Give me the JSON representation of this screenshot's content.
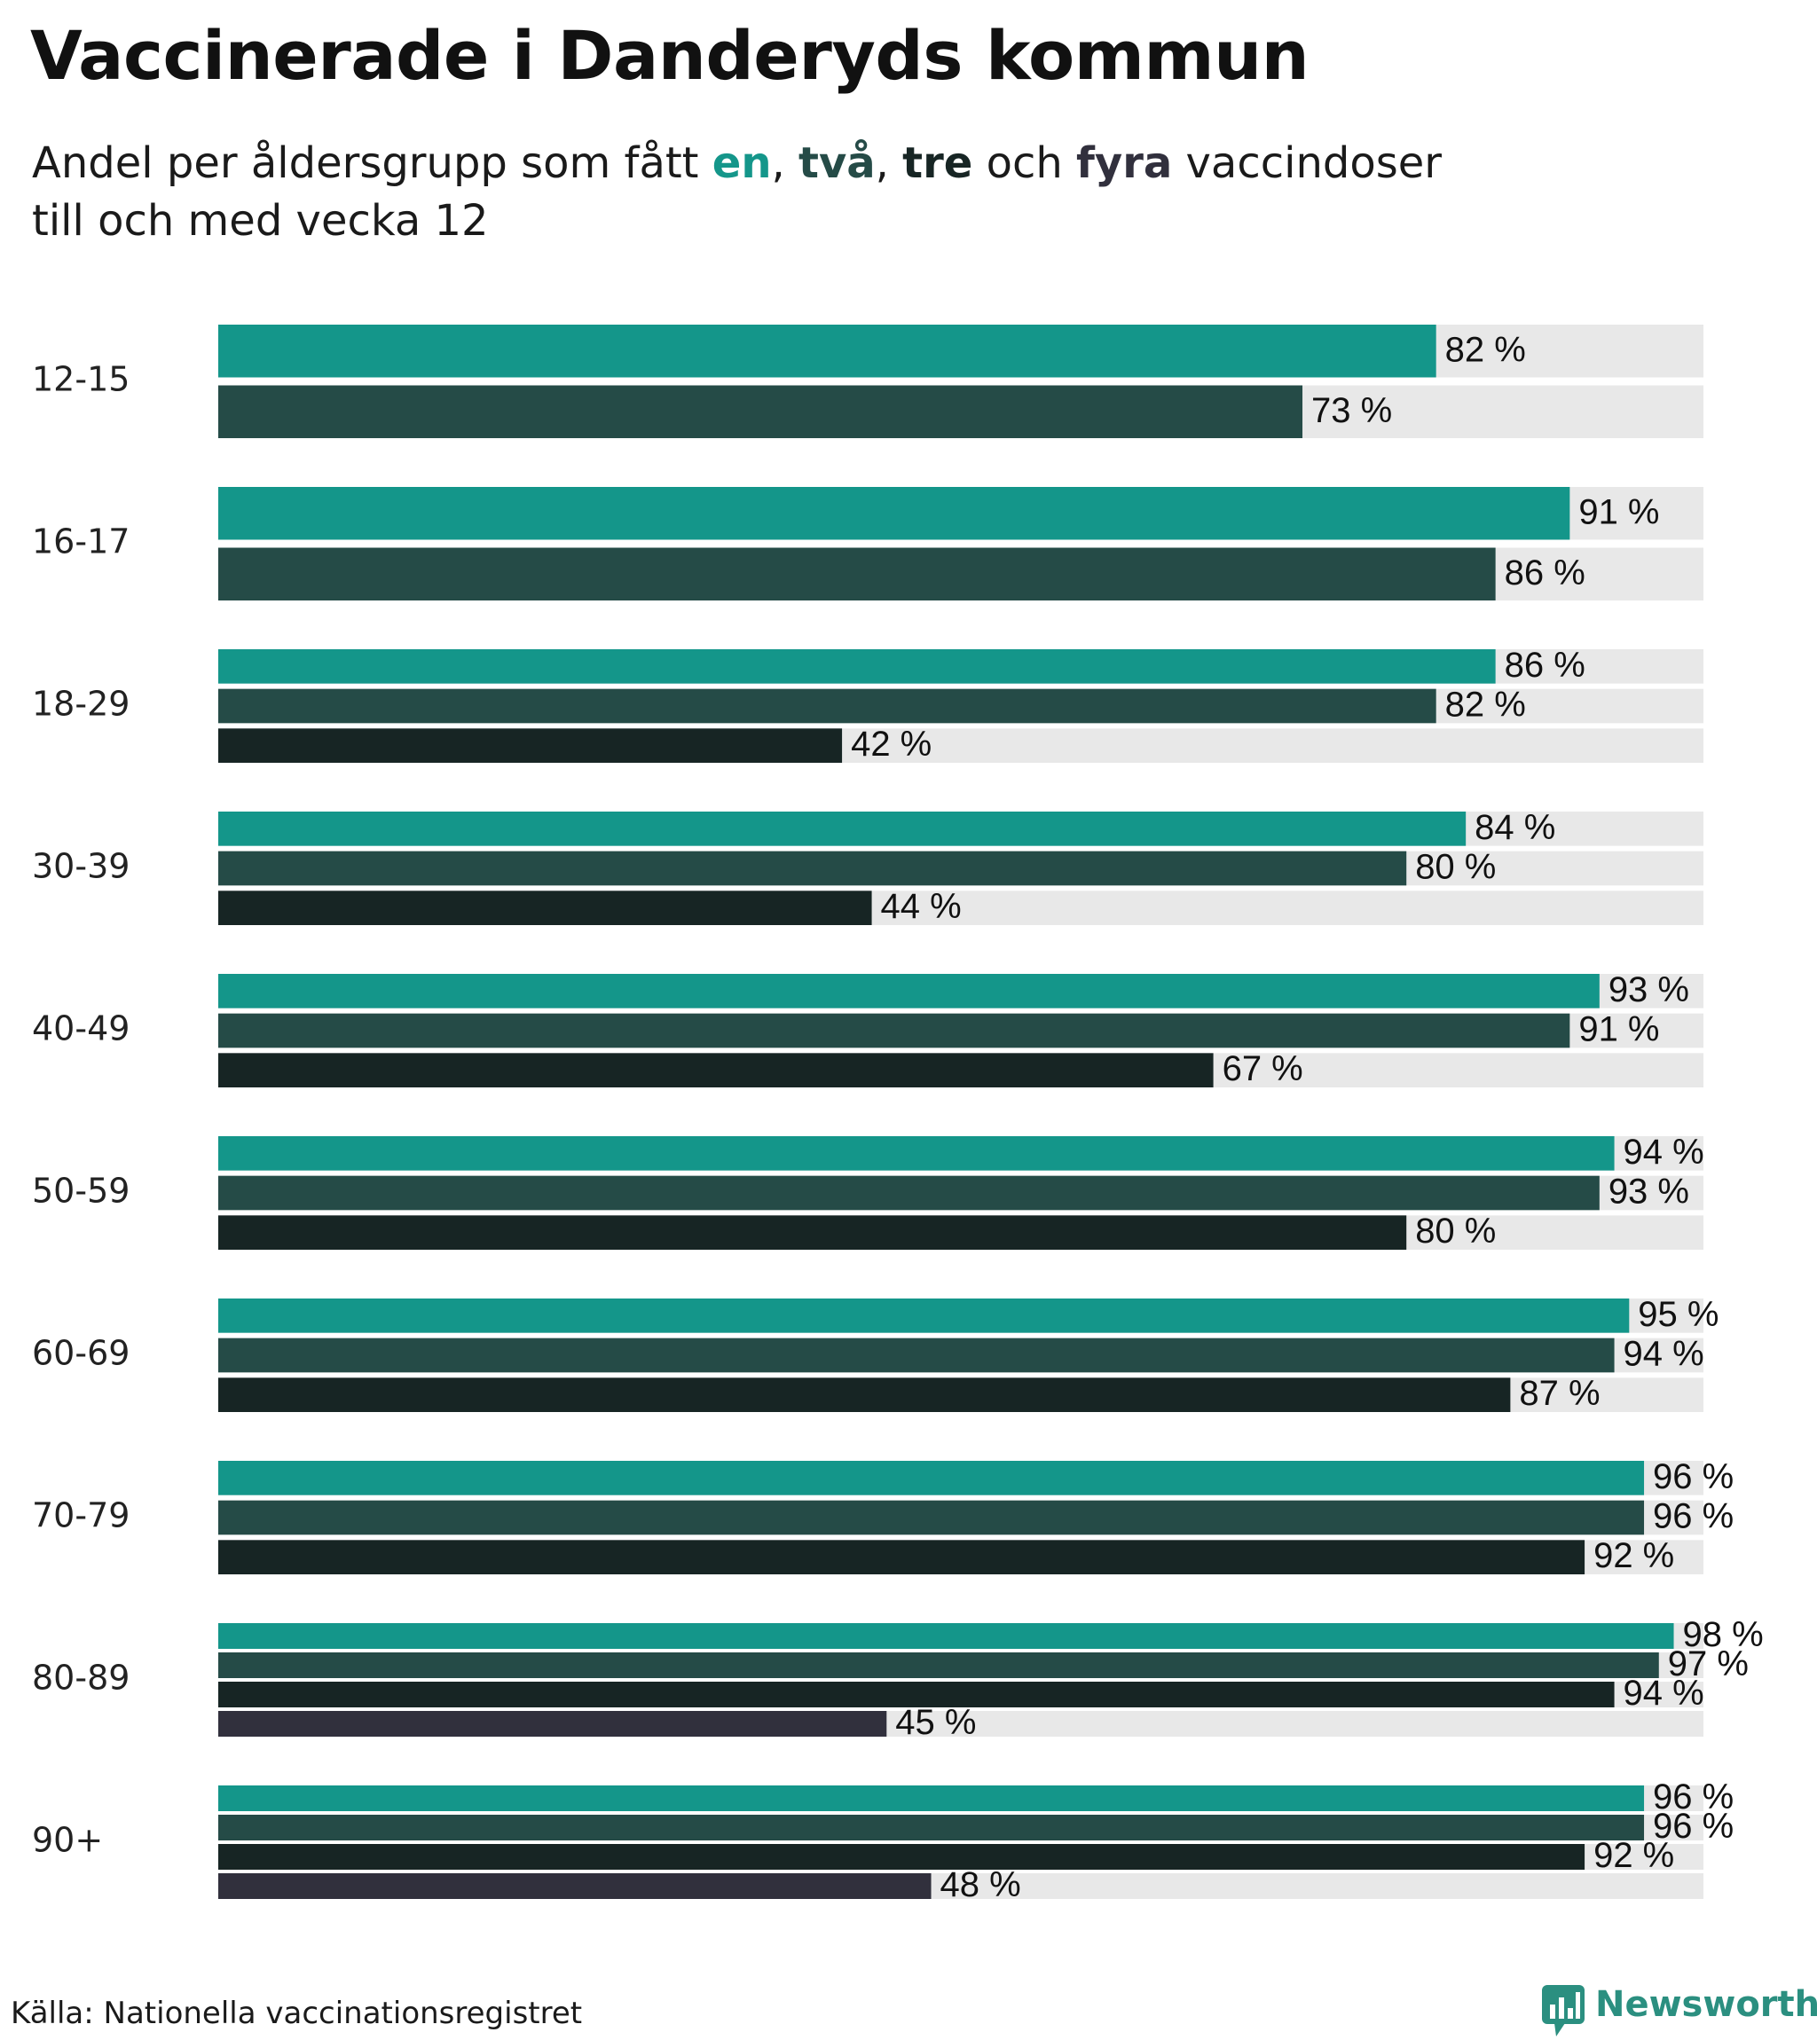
{
  "title": "Vaccinerade i Danderyds kommun",
  "subtitle": {
    "part1": "Andel per åldersgrupp som fått ",
    "w1": "en",
    "sep1": ", ",
    "w2": "två",
    "sep2": ", ",
    "w3": "tre",
    "part2": " och ",
    "w4": "fyra",
    "part3": " vaccindoser",
    "line2": "till och med vecka 12"
  },
  "colors": {
    "dose1": "#14968a",
    "dose2": "#254b47",
    "dose3": "#172524",
    "dose4": "#31303d",
    "track": "#e8e8e8"
  },
  "source": "Källa: Nationella vaccinationsregistret",
  "logo": {
    "text": "Newsworthy",
    "icon": "bar-chart-speech-bubble-icon"
  },
  "chart_data": {
    "type": "bar",
    "orientation": "horizontal",
    "title": "Vaccinerade i Danderyds kommun",
    "subtitle": "Andel per åldersgrupp som fått en, två, tre och fyra vaccindoser till och med vecka 12",
    "xlim": [
      0,
      100
    ],
    "unit": "%",
    "series_names": [
      "en",
      "två",
      "tre",
      "fyra"
    ],
    "groups": [
      {
        "label": "12-15",
        "values": [
          82,
          73
        ]
      },
      {
        "label": "16-17",
        "values": [
          91,
          86
        ]
      },
      {
        "label": "18-29",
        "values": [
          86,
          82,
          42
        ]
      },
      {
        "label": "30-39",
        "values": [
          84,
          80,
          44
        ]
      },
      {
        "label": "40-49",
        "values": [
          93,
          91,
          67
        ]
      },
      {
        "label": "50-59",
        "values": [
          94,
          93,
          80
        ]
      },
      {
        "label": "60-69",
        "values": [
          95,
          94,
          87
        ]
      },
      {
        "label": "70-79",
        "values": [
          96,
          96,
          92
        ]
      },
      {
        "label": "80-89",
        "values": [
          98,
          97,
          94,
          45
        ]
      },
      {
        "label": "90+",
        "values": [
          96,
          96,
          92,
          48
        ]
      }
    ]
  }
}
